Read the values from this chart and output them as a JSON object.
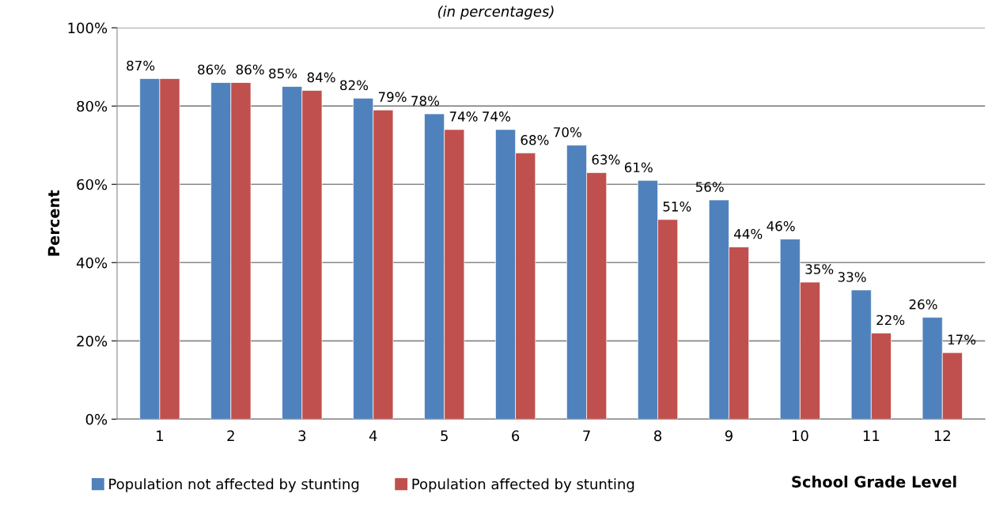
{
  "chart_data": {
    "type": "bar",
    "subtitle": "(in percentages)",
    "xlabel": "School Grade Level",
    "ylabel": "Percent",
    "categories": [
      "1",
      "2",
      "3",
      "4",
      "5",
      "6",
      "7",
      "8",
      "9",
      "10",
      "11",
      "12"
    ],
    "series": [
      {
        "name": "Population not affected by stunting",
        "color": "#4f81bd",
        "values": [
          87,
          86,
          85,
          82,
          78,
          74,
          70,
          61,
          56,
          46,
          33,
          26
        ],
        "value_labels": [
          "87%",
          "86%",
          "85%",
          "82%",
          "78%",
          "74%",
          "70%",
          "61%",
          "56%",
          "46%",
          "33%",
          "26%"
        ]
      },
      {
        "name": "Population affected by stunting",
        "color": "#c0504d",
        "values": [
          87,
          86,
          84,
          79,
          74,
          68,
          63,
          51,
          44,
          35,
          22,
          17
        ],
        "value_labels": [
          null,
          "86%",
          "84%",
          "79%",
          "74%",
          "68%",
          "63%",
          "51%",
          "44%",
          "35%",
          "22%",
          "17%"
        ]
      }
    ],
    "ylim": [
      0,
      100
    ],
    "yticks": [
      {
        "value": 0,
        "label": "0%"
      },
      {
        "value": 20,
        "label": "20%"
      },
      {
        "value": 40,
        "label": "40%"
      },
      {
        "value": 60,
        "label": "60%"
      },
      {
        "value": 80,
        "label": "80%"
      },
      {
        "value": 100,
        "label": "100%"
      }
    ],
    "grid": "y",
    "legend": "bottom"
  }
}
